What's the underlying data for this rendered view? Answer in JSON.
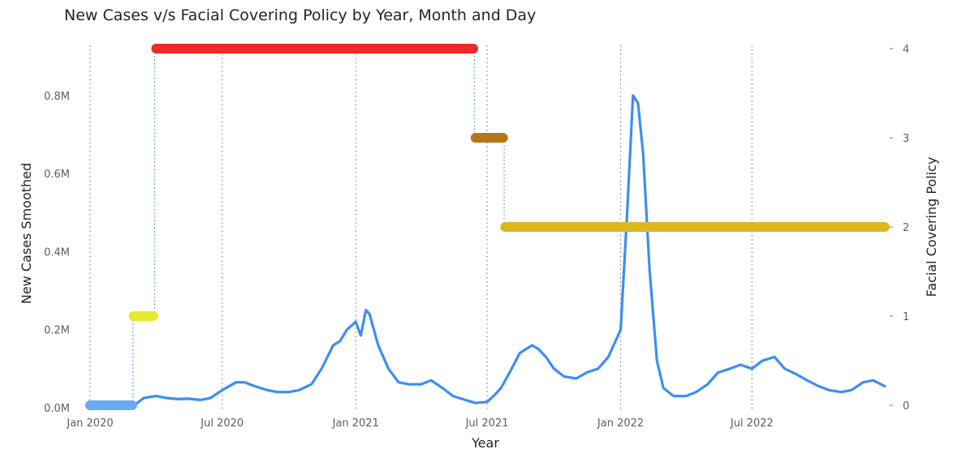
{
  "chart_data": {
    "type": "line",
    "title": "New Cases v/s Facial Covering Policy by Year, Month and Day",
    "xlabel": "Year",
    "ylabel": "New Cases Smoothed",
    "y2label": "Facial Covering Policy",
    "x_ticks": [
      "Jan 2020",
      "Jul 2020",
      "Jan 2021",
      "Jul 2021",
      "Jan 2022",
      "Jul 2022"
    ],
    "x_tick_dates": [
      "2020-01-01",
      "2020-07-01",
      "2021-01-01",
      "2021-07-01",
      "2022-01-01",
      "2022-07-01"
    ],
    "xlim": [
      "2020-01-01",
      "2022-12-31"
    ],
    "y_ticks": [
      "0.0M",
      "0.2M",
      "0.4M",
      "0.6M",
      "0.8M"
    ],
    "y_tick_values": [
      0,
      200000,
      400000,
      600000,
      800000
    ],
    "ylim": [
      0,
      920000
    ],
    "y2_ticks": [
      "0",
      "1",
      "2",
      "3",
      "4"
    ],
    "y2_tick_values": [
      0,
      1,
      2,
      3,
      4
    ],
    "y2lim": [
      0,
      4
    ],
    "grid": "vertical dotted lines at x ticks",
    "series": [
      {
        "axis": "left",
        "color": "#3d8ef0",
        "points": [
          [
            "2020-01-01",
            2000
          ],
          [
            "2020-02-15",
            2000
          ],
          [
            "2020-03-01",
            5000
          ],
          [
            "2020-03-15",
            25000
          ],
          [
            "2020-04-01",
            30000
          ],
          [
            "2020-04-15",
            25000
          ],
          [
            "2020-05-01",
            22000
          ],
          [
            "2020-05-15",
            23000
          ],
          [
            "2020-06-01",
            20000
          ],
          [
            "2020-06-15",
            25000
          ],
          [
            "2020-07-01",
            45000
          ],
          [
            "2020-07-20",
            65000
          ],
          [
            "2020-08-01",
            65000
          ],
          [
            "2020-08-15",
            55000
          ],
          [
            "2020-09-01",
            45000
          ],
          [
            "2020-09-15",
            40000
          ],
          [
            "2020-10-01",
            40000
          ],
          [
            "2020-10-15",
            45000
          ],
          [
            "2020-11-01",
            60000
          ],
          [
            "2020-11-15",
            100000
          ],
          [
            "2020-12-01",
            160000
          ],
          [
            "2020-12-10",
            170000
          ],
          [
            "2020-12-20",
            200000
          ],
          [
            "2021-01-01",
            220000
          ],
          [
            "2021-01-08",
            185000
          ],
          [
            "2021-01-15",
            250000
          ],
          [
            "2021-01-20",
            240000
          ],
          [
            "2021-02-01",
            160000
          ],
          [
            "2021-02-15",
            100000
          ],
          [
            "2021-03-01",
            65000
          ],
          [
            "2021-03-15",
            60000
          ],
          [
            "2021-04-01",
            60000
          ],
          [
            "2021-04-15",
            70000
          ],
          [
            "2021-05-01",
            50000
          ],
          [
            "2021-05-15",
            30000
          ],
          [
            "2021-06-01",
            20000
          ],
          [
            "2021-06-15",
            12000
          ],
          [
            "2021-07-01",
            15000
          ],
          [
            "2021-07-10",
            30000
          ],
          [
            "2021-07-20",
            50000
          ],
          [
            "2021-08-01",
            90000
          ],
          [
            "2021-08-15",
            140000
          ],
          [
            "2021-09-01",
            160000
          ],
          [
            "2021-09-10",
            150000
          ],
          [
            "2021-09-20",
            130000
          ],
          [
            "2021-10-01",
            100000
          ],
          [
            "2021-10-15",
            80000
          ],
          [
            "2021-11-01",
            75000
          ],
          [
            "2021-11-15",
            90000
          ],
          [
            "2021-12-01",
            100000
          ],
          [
            "2021-12-15",
            130000
          ],
          [
            "2022-01-01",
            200000
          ],
          [
            "2022-01-10",
            500000
          ],
          [
            "2022-01-18",
            800000
          ],
          [
            "2022-01-25",
            780000
          ],
          [
            "2022-02-01",
            650000
          ],
          [
            "2022-02-10",
            350000
          ],
          [
            "2022-02-20",
            120000
          ],
          [
            "2022-03-01",
            50000
          ],
          [
            "2022-03-15",
            30000
          ],
          [
            "2022-04-01",
            30000
          ],
          [
            "2022-04-15",
            40000
          ],
          [
            "2022-05-01",
            60000
          ],
          [
            "2022-05-15",
            90000
          ],
          [
            "2022-06-01",
            100000
          ],
          [
            "2022-06-15",
            110000
          ],
          [
            "2022-07-01",
            100000
          ],
          [
            "2022-07-15",
            120000
          ],
          [
            "2022-08-01",
            130000
          ],
          [
            "2022-08-15",
            100000
          ],
          [
            "2022-09-01",
            85000
          ],
          [
            "2022-09-15",
            70000
          ],
          [
            "2022-10-01",
            55000
          ],
          [
            "2022-10-15",
            45000
          ],
          [
            "2022-11-01",
            40000
          ],
          [
            "2022-11-15",
            45000
          ],
          [
            "2022-12-01",
            65000
          ],
          [
            "2022-12-15",
            70000
          ],
          [
            "2022-12-31",
            55000
          ]
        ]
      }
    ],
    "policy_segments": [
      {
        "axis": "right",
        "start": "2020-01-01",
        "end": "2020-02-28",
        "value": 0,
        "color": "#6aaaf5"
      },
      {
        "axis": "right",
        "start": "2020-03-01",
        "end": "2020-03-28",
        "value": 1,
        "color": "#e4ea2c"
      },
      {
        "axis": "right",
        "start": "2020-04-01",
        "end": "2021-06-12",
        "value": 4,
        "color": "#f02a2a"
      },
      {
        "axis": "right",
        "start": "2021-06-15",
        "end": "2021-07-23",
        "value": 3,
        "color": "#b87518"
      },
      {
        "axis": "right",
        "start": "2021-07-26",
        "end": "2022-12-31",
        "value": 2,
        "color": "#dcb820"
      }
    ]
  }
}
